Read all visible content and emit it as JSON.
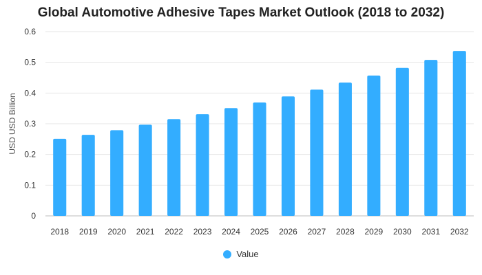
{
  "chart_data": {
    "type": "bar",
    "title": "Global Automotive Adhesive Tapes Market Outlook (2018 to 2032)",
    "ylabel": "USD USD Billion",
    "xlabel": "",
    "categories": [
      "2018",
      "2019",
      "2020",
      "2021",
      "2022",
      "2023",
      "2024",
      "2025",
      "2026",
      "2027",
      "2028",
      "2029",
      "2030",
      "2031",
      "2032"
    ],
    "series": [
      {
        "name": "Value",
        "color": "#33adff",
        "values": [
          0.251,
          0.264,
          0.279,
          0.297,
          0.315,
          0.331,
          0.351,
          0.369,
          0.389,
          0.411,
          0.434,
          0.457,
          0.482,
          0.508,
          0.537
        ]
      }
    ],
    "ylim": [
      0,
      0.6
    ],
    "yticks": [
      "0",
      "0.1",
      "0.2",
      "0.3",
      "0.4",
      "0.5",
      "0.6"
    ],
    "grid": true,
    "legend": "bottom-center"
  }
}
